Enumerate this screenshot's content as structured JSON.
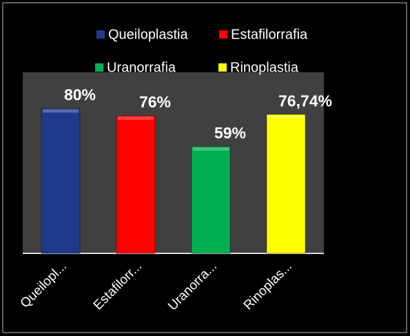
{
  "chart_data": {
    "type": "bar",
    "categories": [
      "Queiloplastia",
      "Estafilorrafia",
      "Uranorrafia",
      "Rinoplastia"
    ],
    "category_labels": [
      "Queilopl...",
      "Estafilorr...",
      "Uranorra...",
      "Rinoplas..."
    ],
    "values": [
      80,
      76,
      59,
      76.74
    ],
    "value_labels": [
      "80%",
      "76%",
      "59%",
      "76,74%"
    ],
    "colors": [
      "#1f3a8a",
      "#ff0000",
      "#00b050",
      "#ffff00"
    ],
    "ylim": [
      0,
      100
    ]
  }
}
